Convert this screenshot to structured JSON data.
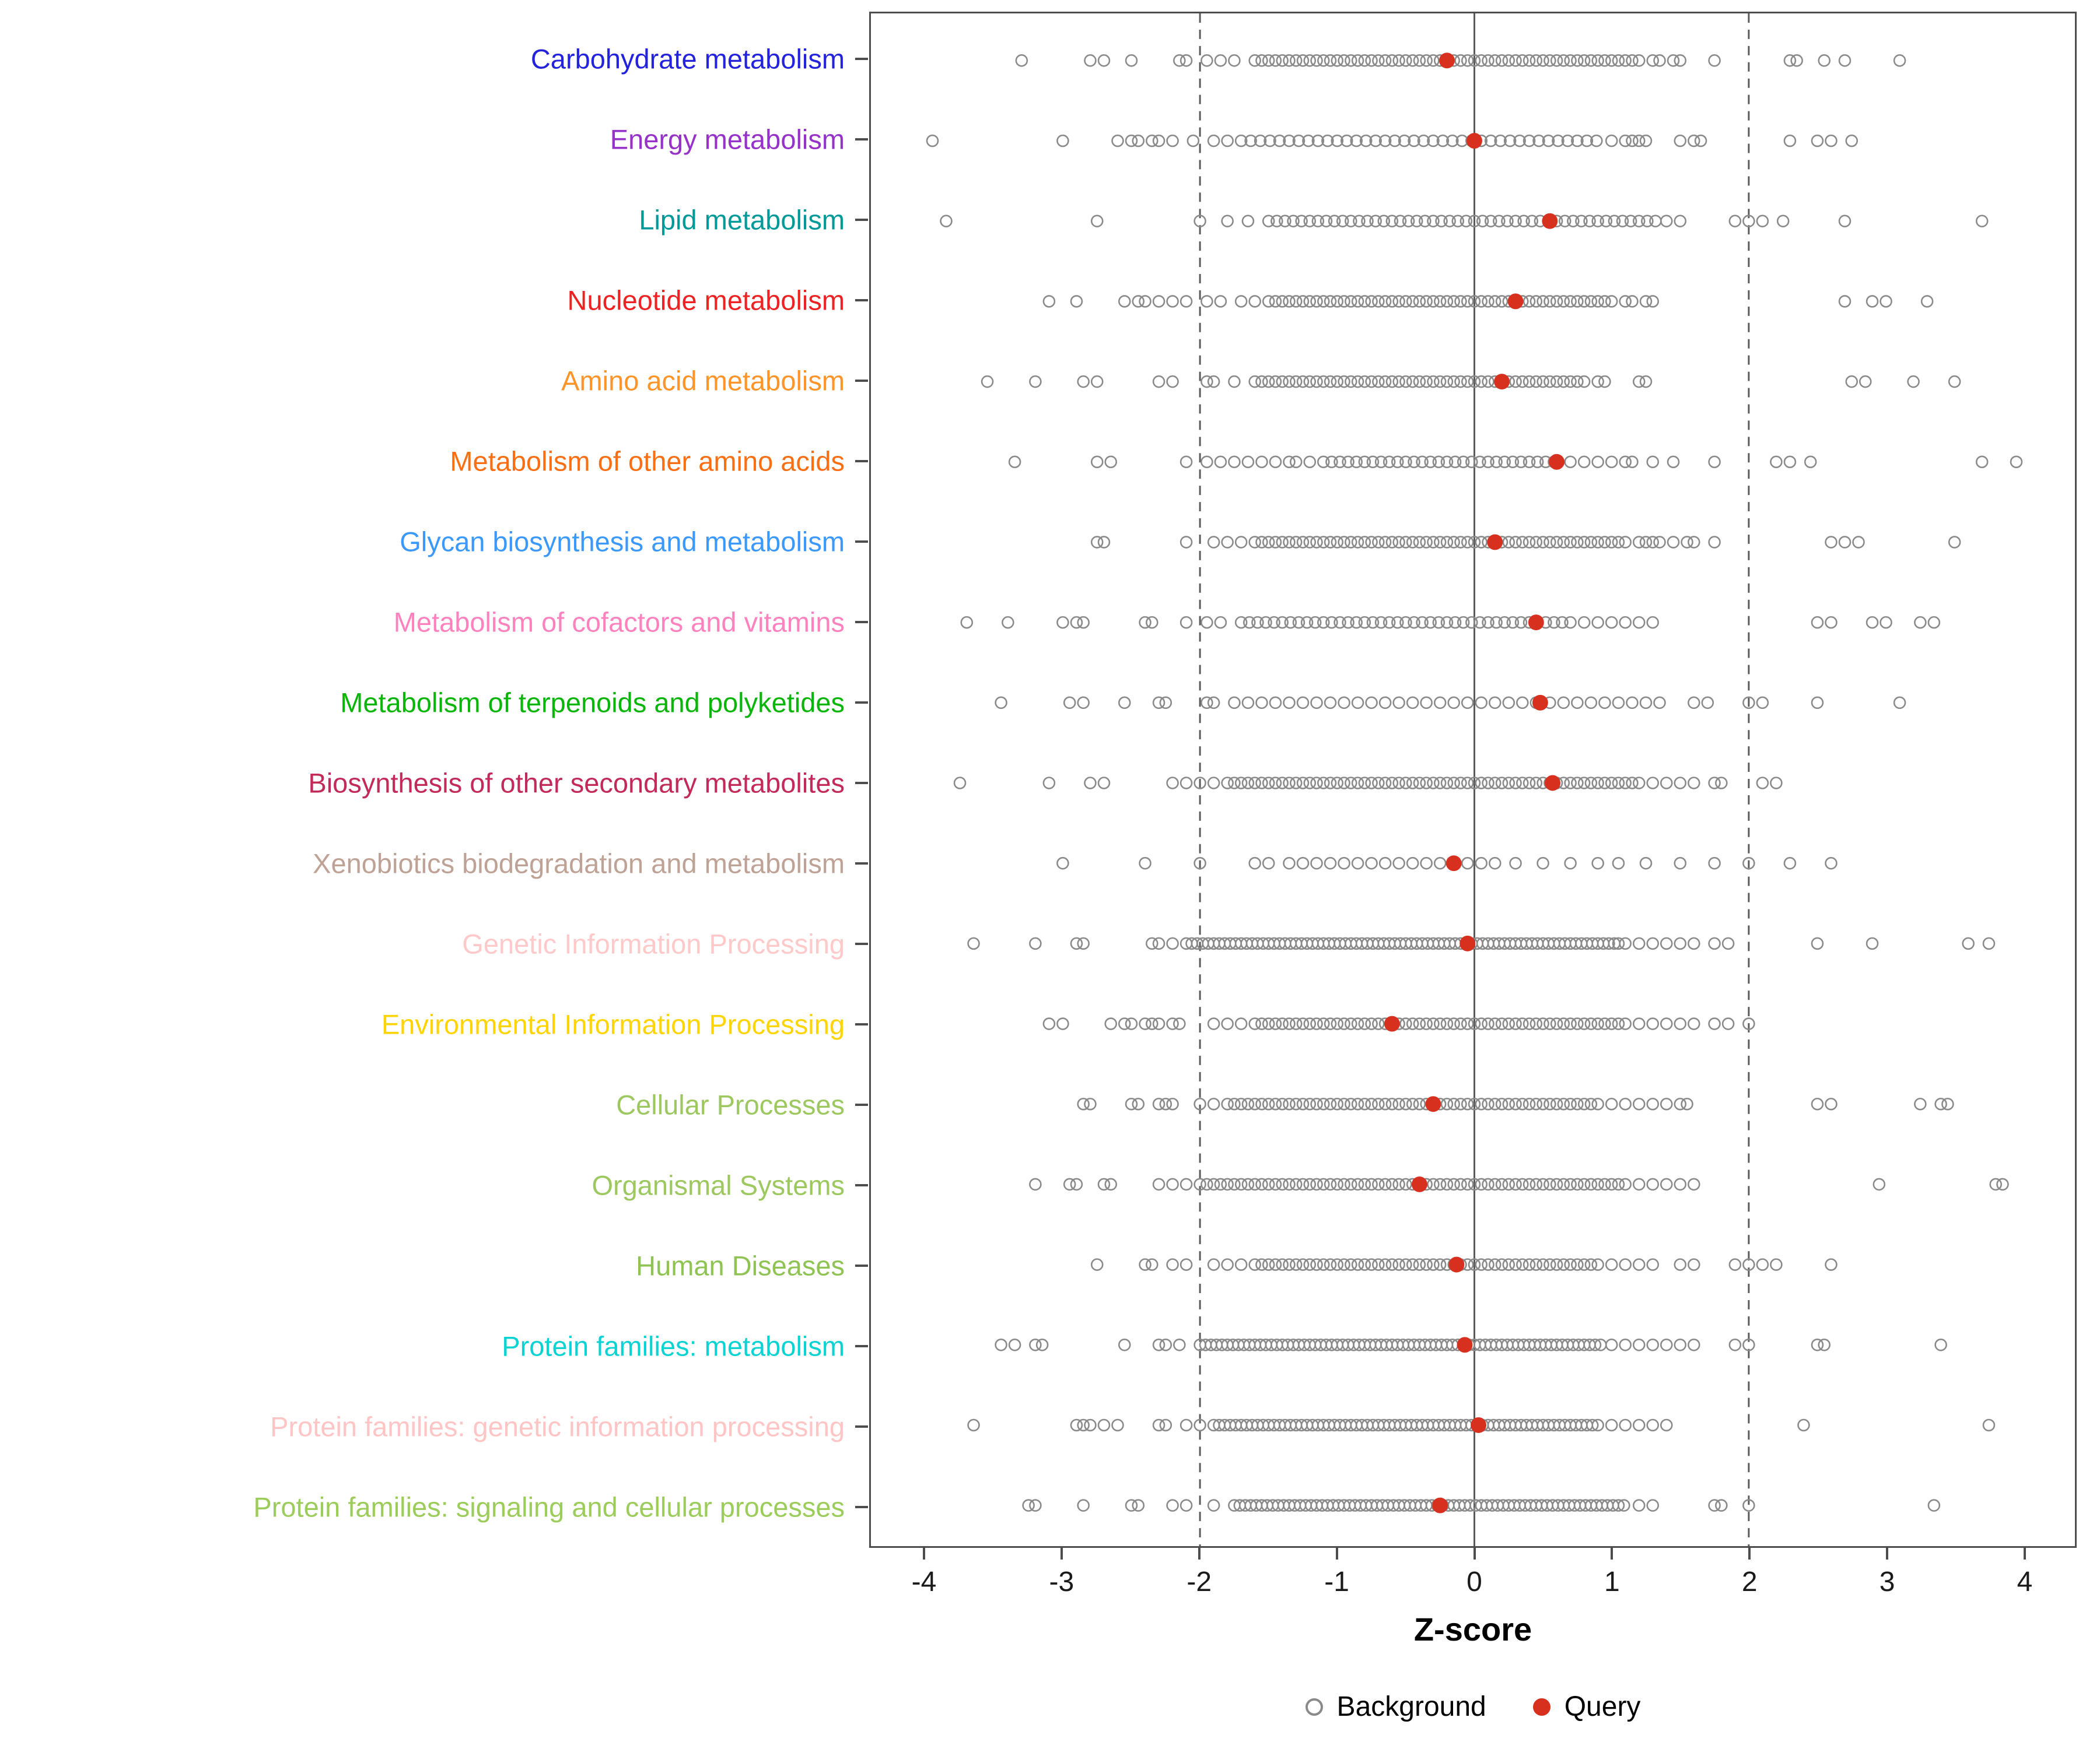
{
  "chart_data": {
    "type": "scatter",
    "title": "",
    "xlabel": "Z-score",
    "xlim": [
      -4.3,
      4.3
    ],
    "x_ticks": [
      -4,
      -3,
      -2,
      -1,
      0,
      1,
      2,
      3,
      4
    ],
    "dashed_lines_x": [
      -2,
      2
    ],
    "solid_line_x": 0,
    "grid": false,
    "legend_position": "bottom",
    "legend": {
      "background": "Background",
      "query": "Query"
    },
    "colors": {
      "background_stroke": "#8a8a8a",
      "query_fill": "#d7301f",
      "axis": "#4d4d4d"
    },
    "rows": [
      {
        "label": "Carbohydrate metabolism",
        "color": "#2323dc",
        "query": -0.2,
        "background_band": [
          -1.6,
          1.05,
          0.05
        ],
        "background_points": [
          -3.3,
          -2.8,
          -2.7,
          -2.5,
          -2.15,
          -2.1,
          -1.95,
          -1.85,
          -1.75,
          1.1,
          1.15,
          1.2,
          1.3,
          1.35,
          1.45,
          1.5,
          1.75,
          2.3,
          2.35,
          2.55,
          2.7,
          3.1
        ]
      },
      {
        "label": "Energy metabolism",
        "color": "#9632c8",
        "query": 0.0,
        "background_band": [
          -1.7,
          0.9,
          0.07
        ],
        "background_points": [
          -3.95,
          -3.0,
          -2.6,
          -2.5,
          -2.45,
          -2.35,
          -2.3,
          -2.2,
          -2.05,
          -1.9,
          -1.8,
          1.0,
          1.1,
          1.15,
          1.2,
          1.25,
          1.5,
          1.6,
          1.65,
          2.3,
          2.5,
          2.6,
          2.75
        ]
      },
      {
        "label": "Lipid metabolism",
        "color": "#009999",
        "query": 0.55,
        "background_band": [
          -1.5,
          1.3,
          0.06
        ],
        "background_points": [
          -3.85,
          -2.75,
          -2.0,
          -1.8,
          -1.65,
          1.4,
          1.5,
          1.9,
          2.0,
          2.1,
          2.25,
          2.7,
          3.7
        ]
      },
      {
        "label": "Nucleotide metabolism",
        "color": "#ee2222",
        "query": 0.3,
        "background_band": [
          -1.5,
          1.0,
          0.05
        ],
        "background_points": [
          -3.1,
          -2.9,
          -2.55,
          -2.45,
          -2.4,
          -2.3,
          -2.2,
          -2.1,
          -1.95,
          -1.85,
          -1.7,
          -1.6,
          1.1,
          1.15,
          1.25,
          1.3,
          2.7,
          2.9,
          3.0,
          3.3
        ]
      },
      {
        "label": "Amino acid metabolism",
        "color": "#ff9429",
        "query": 0.2,
        "background_band": [
          -1.6,
          0.8,
          0.05
        ],
        "background_points": [
          -3.55,
          -3.2,
          -2.85,
          -2.75,
          -2.3,
          -2.2,
          -1.95,
          -1.9,
          -1.75,
          0.9,
          0.95,
          1.2,
          1.25,
          2.75,
          2.85,
          3.2,
          3.5
        ]
      },
      {
        "label": "Metabolism of other amino acids",
        "color": "#fa6e14",
        "query": 0.6,
        "background_band": [
          -1.1,
          0.6,
          0.06
        ],
        "background_points": [
          -3.35,
          -2.75,
          -2.65,
          -2.1,
          -1.95,
          -1.85,
          -1.75,
          -1.65,
          -1.55,
          -1.45,
          -1.35,
          -1.3,
          -1.2,
          0.7,
          0.8,
          0.9,
          1.0,
          1.1,
          1.15,
          1.3,
          1.45,
          1.75,
          2.2,
          2.3,
          2.45,
          3.7,
          3.95
        ]
      },
      {
        "label": "Glycan biosynthesis and metabolism",
        "color": "#3b99fd",
        "query": 0.15,
        "background_band": [
          -1.6,
          1.0,
          0.05
        ],
        "background_points": [
          -2.75,
          -2.7,
          -2.1,
          -1.9,
          -1.8,
          -1.7,
          1.05,
          1.1,
          1.2,
          1.25,
          1.3,
          1.35,
          1.45,
          1.55,
          1.6,
          1.75,
          2.6,
          2.7,
          2.8,
          3.5
        ]
      },
      {
        "label": "Metabolism of cofactors and vitamins",
        "color": "#ff82be",
        "query": 0.45,
        "background_band": [
          -1.7,
          0.7,
          0.06
        ],
        "background_points": [
          -3.7,
          -3.4,
          -3.0,
          -2.9,
          -2.85,
          -2.4,
          -2.35,
          -2.1,
          -1.95,
          -1.85,
          0.8,
          0.9,
          1.0,
          1.1,
          1.2,
          1.3,
          2.5,
          2.6,
          2.9,
          3.0,
          3.25,
          3.35
        ]
      },
      {
        "label": "Metabolism of terpenoids and polyketides",
        "color": "#0ab50a",
        "query": 0.48,
        "background_band": [
          -1.75,
          1.35,
          0.1
        ],
        "background_points": [
          -3.45,
          -2.95,
          -2.85,
          -2.55,
          -2.3,
          -2.25,
          -1.95,
          -1.9,
          1.6,
          1.7,
          2.0,
          2.1,
          2.5,
          3.1
        ]
      },
      {
        "label": "Biosynthesis of other secondary metabolites",
        "color": "#c22a5a",
        "query": 0.57,
        "background_band": [
          -1.8,
          1.1,
          0.05
        ],
        "background_points": [
          -3.75,
          -3.1,
          -2.8,
          -2.7,
          -2.2,
          -2.1,
          -2.0,
          -1.9,
          1.15,
          1.2,
          1.3,
          1.4,
          1.5,
          1.6,
          1.75,
          1.8,
          2.1,
          2.2
        ]
      },
      {
        "label": "Xenobiotics biodegradation and metabolism",
        "color": "#bfa296",
        "query": -0.15,
        "background_band": [
          -1.35,
          0.15,
          0.1
        ],
        "background_points": [
          -3.0,
          -2.4,
          -2.0,
          -1.6,
          -1.5,
          0.3,
          0.5,
          0.7,
          0.9,
          1.05,
          1.25,
          1.5,
          1.75,
          2.0,
          2.3,
          2.6
        ]
      },
      {
        "label": "Genetic Information Processing",
        "color": "#ffc9c9",
        "query": -0.05,
        "background_band": [
          -2.1,
          1.0,
          0.04
        ],
        "background_points": [
          -3.65,
          -3.2,
          -2.9,
          -2.85,
          -2.35,
          -2.3,
          -2.2,
          1.05,
          1.1,
          1.2,
          1.3,
          1.4,
          1.5,
          1.6,
          1.75,
          1.85,
          2.5,
          2.9,
          3.6,
          3.75
        ]
      },
      {
        "label": "Environmental Information Processing",
        "color": "#ffd403",
        "query": -0.6,
        "background_band": [
          -1.6,
          1.1,
          0.05
        ],
        "background_points": [
          -3.1,
          -3.0,
          -2.65,
          -2.55,
          -2.5,
          -2.4,
          -2.35,
          -2.3,
          -2.2,
          -2.15,
          -1.9,
          -1.8,
          -1.7,
          1.2,
          1.3,
          1.4,
          1.5,
          1.6,
          1.75,
          1.85,
          2.0
        ]
      },
      {
        "label": "Cellular Processes",
        "color": "#9dc860",
        "query": -0.3,
        "background_band": [
          -1.8,
          0.9,
          0.05
        ],
        "background_points": [
          -2.85,
          -2.8,
          -2.5,
          -2.45,
          -2.3,
          -2.25,
          -2.2,
          -2.0,
          -1.9,
          1.0,
          1.1,
          1.2,
          1.3,
          1.4,
          1.5,
          1.55,
          2.5,
          2.6,
          3.25,
          3.4,
          3.45
        ]
      },
      {
        "label": "Organismal Systems",
        "color": "#9dc860",
        "query": -0.4,
        "background_band": [
          -2.0,
          1.1,
          0.05
        ],
        "background_points": [
          -3.2,
          -2.95,
          -2.9,
          -2.7,
          -2.65,
          -2.3,
          -2.2,
          -2.1,
          1.2,
          1.3,
          1.4,
          1.5,
          1.6,
          2.95,
          3.8,
          3.85
        ]
      },
      {
        "label": "Human Diseases",
        "color": "#8fc353",
        "query": -0.13,
        "background_band": [
          -1.6,
          0.9,
          0.05
        ],
        "background_points": [
          -2.75,
          -2.4,
          -2.35,
          -2.2,
          -2.1,
          -1.9,
          -1.8,
          -1.7,
          1.0,
          1.1,
          1.2,
          1.3,
          1.5,
          1.6,
          1.9,
          2.0,
          2.1,
          2.2,
          2.6
        ]
      },
      {
        "label": "Protein families: metabolism",
        "color": "#0cd3d3",
        "query": -0.07,
        "background_band": [
          -2.0,
          0.9,
          0.04
        ],
        "background_points": [
          -3.45,
          -3.35,
          -3.2,
          -3.15,
          -2.55,
          -2.3,
          -2.25,
          -2.15,
          1.0,
          1.1,
          1.2,
          1.3,
          1.4,
          1.5,
          1.6,
          1.9,
          2.0,
          2.5,
          2.55,
          3.4
        ]
      },
      {
        "label": "Protein families: genetic information processing",
        "color": "#ffc4c4",
        "query": 0.03,
        "background_band": [
          -1.9,
          0.85,
          0.04
        ],
        "background_points": [
          -3.65,
          -2.9,
          -2.85,
          -2.8,
          -2.7,
          -2.6,
          -2.3,
          -2.25,
          -2.1,
          -2.0,
          0.9,
          1.0,
          1.1,
          1.2,
          1.3,
          1.4,
          2.4,
          3.75
        ]
      },
      {
        "label": "Protein families: signaling and cellular processes",
        "color": "#9ccc5a",
        "query": -0.25,
        "background_band": [
          -1.75,
          1.1,
          0.04
        ],
        "background_points": [
          -3.25,
          -3.2,
          -2.85,
          -2.5,
          -2.45,
          -2.2,
          -2.1,
          -1.9,
          1.2,
          1.3,
          1.75,
          1.8,
          2.0,
          3.35
        ]
      }
    ]
  }
}
